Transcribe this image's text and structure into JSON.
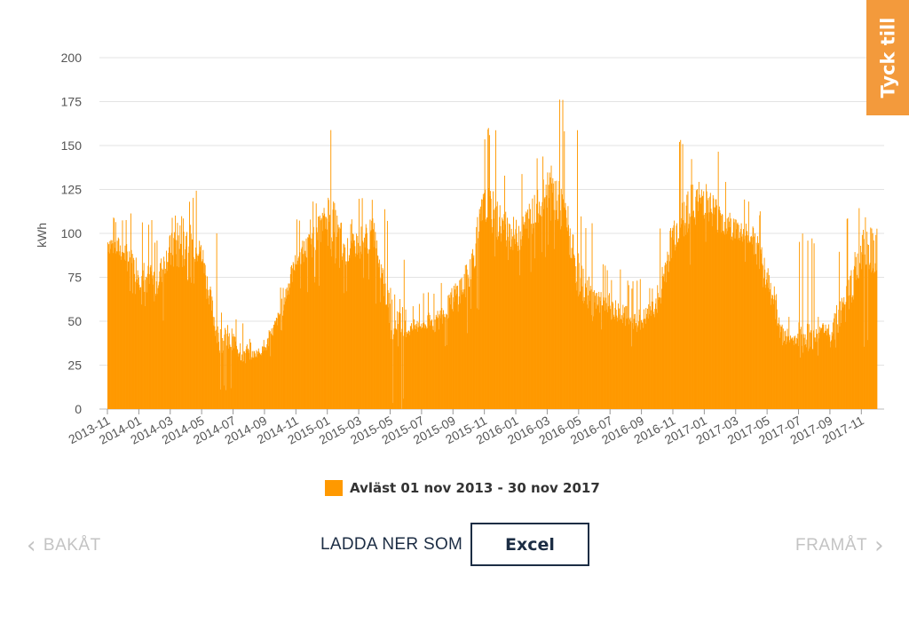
{
  "feedback_tab": {
    "label": "Tyck till"
  },
  "legend": {
    "label": "Avläst 01 nov 2013 - 30 nov 2017",
    "color": "#ff9900"
  },
  "navigation": {
    "back_label": "BAKÅT",
    "forward_label": "FRAMÅT"
  },
  "download": {
    "label": "LADDA NER SOM",
    "excel_label": "Excel"
  },
  "chart_data": {
    "type": "bar",
    "ylabel": "kWh",
    "ylim": [
      0,
      200
    ],
    "yticks": [
      0,
      25,
      50,
      75,
      100,
      125,
      150,
      175,
      200
    ],
    "xticks": [
      "2013-11",
      "2014-01",
      "2014-03",
      "2014-05",
      "2014-07",
      "2014-09",
      "2014-11",
      "2015-01",
      "2015-03",
      "2015-05",
      "2015-07",
      "2015-09",
      "2015-11",
      "2016-01",
      "2016-03",
      "2016-05",
      "2016-07",
      "2016-09",
      "2016-11",
      "2017-01",
      "2017-03",
      "2017-05",
      "2017-07",
      "2017-09",
      "2017-11"
    ],
    "grid": true,
    "bar_color": "#ff9900",
    "series": [
      {
        "name": "Avläst 01 nov 2013 - 30 nov 2017",
        "x": [
          "2013-11",
          "2013-12",
          "2014-01",
          "2014-02",
          "2014-03",
          "2014-04",
          "2014-05",
          "2014-06",
          "2014-07",
          "2014-08",
          "2014-09",
          "2014-10",
          "2014-11",
          "2014-12",
          "2015-01",
          "2015-02",
          "2015-03",
          "2015-04",
          "2015-05",
          "2015-06",
          "2015-07",
          "2015-08",
          "2015-09",
          "2015-10",
          "2015-11",
          "2015-12",
          "2016-01",
          "2016-02",
          "2016-03",
          "2016-04",
          "2016-05",
          "2016-06",
          "2016-07",
          "2016-08",
          "2016-09",
          "2016-10",
          "2016-11",
          "2016-12",
          "2017-01",
          "2017-02",
          "2017-03",
          "2017-04",
          "2017-05",
          "2017-06",
          "2017-07",
          "2017-08",
          "2017-09",
          "2017-10",
          "2017-11"
        ],
        "values": [
          95,
          90,
          78,
          70,
          92,
          98,
          88,
          40,
          38,
          30,
          34,
          55,
          85,
          95,
          110,
          88,
          95,
          100,
          55,
          45,
          48,
          50,
          62,
          75,
          118,
          105,
          98,
          110,
          125,
          115,
          75,
          60,
          58,
          52,
          50,
          60,
          100,
          115,
          120,
          108,
          102,
          98,
          75,
          42,
          40,
          42,
          45,
          60,
          90
        ],
        "highs": [
          110,
          115,
          112,
          100,
          115,
          125,
          105,
          55,
          52,
          40,
          50,
          75,
          108,
          120,
          160,
          110,
          125,
          115,
          85,
          65,
          70,
          72,
          100,
          120,
          160,
          140,
          135,
          145,
          183,
          160,
          110,
          85,
          80,
          75,
          70,
          110,
          155,
          150,
          150,
          130,
          125,
          118,
          100,
          60,
          100,
          55,
          95,
          115,
          112
        ],
        "lows": [
          70,
          65,
          55,
          50,
          15,
          70,
          60,
          10,
          8,
          25,
          28,
          40,
          65,
          70,
          60,
          65,
          70,
          55,
          0,
          38,
          35,
          32,
          40,
          55,
          85,
          80,
          75,
          85,
          90,
          80,
          50,
          40,
          38,
          35,
          36,
          42,
          80,
          80,
          90,
          85,
          80,
          65,
          45,
          32,
          33,
          30,
          35,
          42,
          35
        ]
      }
    ]
  }
}
